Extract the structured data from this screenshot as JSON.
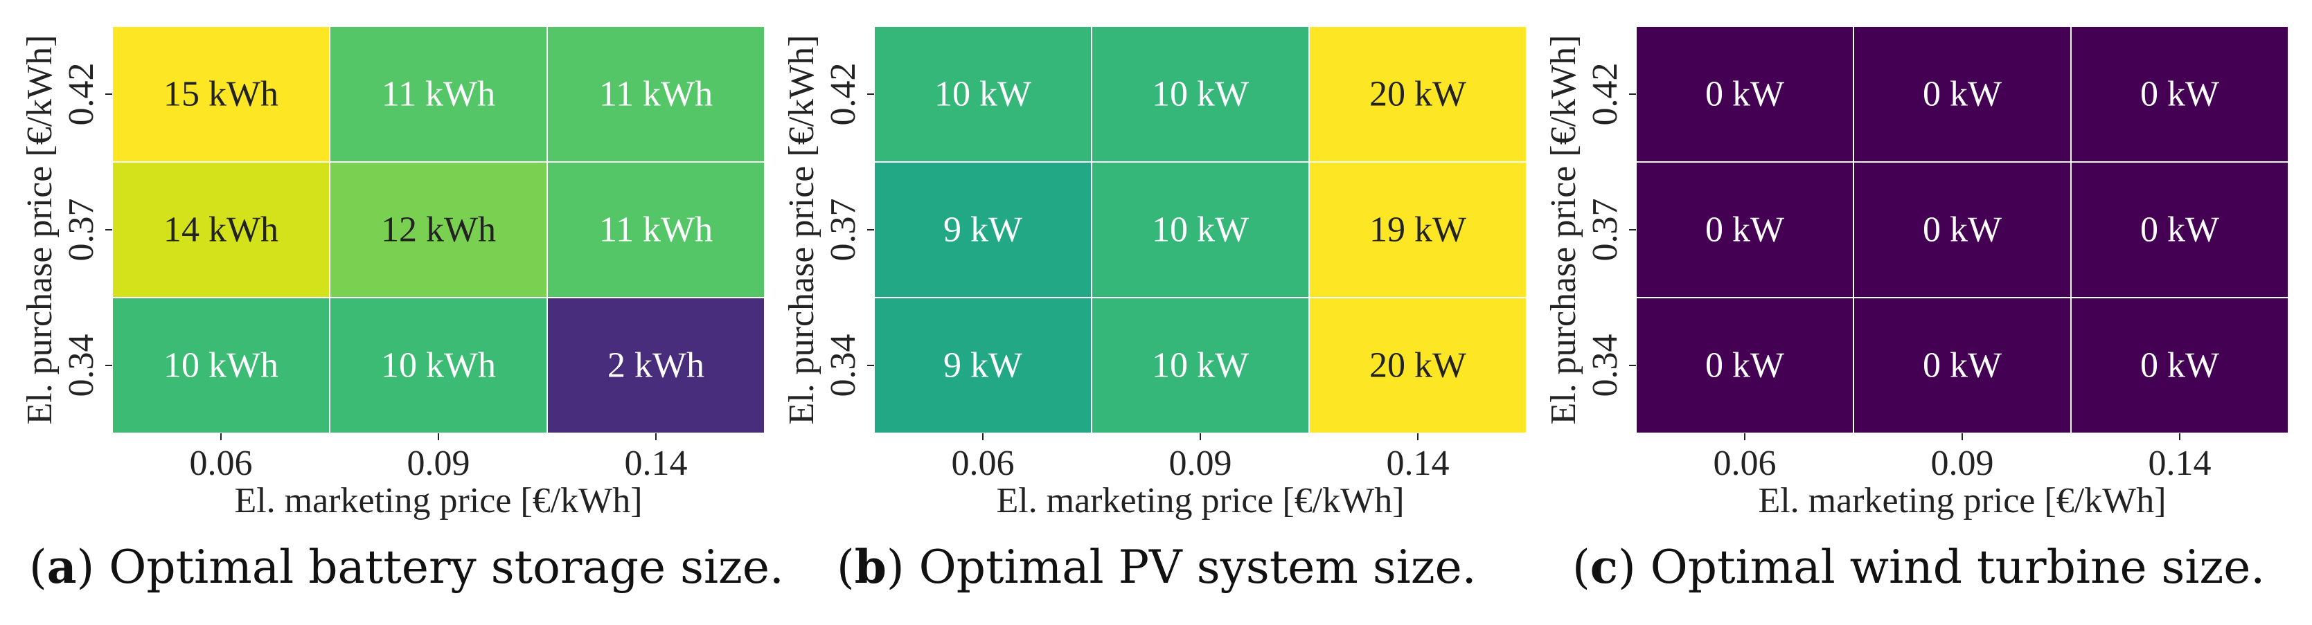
{
  "x_label": "El. marketing price [€/kWh]",
  "y_label": "El. purchase price [€/kWh]",
  "colors": {
    "grid_line": "#ffffff",
    "dark_text": "#222222",
    "light_text": "#ffffff"
  },
  "chart_data": [
    {
      "type": "heatmap",
      "caption_letter": "a",
      "caption_text": ") Optimal battery storage size.",
      "xlabel": "El. marketing price [€/kWh]",
      "ylabel": "El. purchase price [€/kWh]",
      "x_categories": [
        "0.06",
        "0.09",
        "0.14"
      ],
      "y_categories": [
        "0.42",
        "0.37",
        "0.34"
      ],
      "unit": "kWh",
      "values": [
        [
          15,
          11,
          11
        ],
        [
          14,
          12,
          11
        ],
        [
          10,
          10,
          2
        ]
      ],
      "labels": [
        [
          "15 kWh",
          "11 kWh",
          "11 kWh"
        ],
        [
          "14 kWh",
          "12 kWh",
          "11 kWh"
        ],
        [
          "10 kWh",
          "10 kWh",
          "2 kWh"
        ]
      ],
      "cell_colors": [
        [
          "#fde725",
          "#55c667",
          "#55c667"
        ],
        [
          "#d3e21b",
          "#7ad151",
          "#55c667"
        ],
        [
          "#3cbb75",
          "#3cbb75",
          "#472d7b"
        ]
      ]
    },
    {
      "type": "heatmap",
      "caption_letter": "b",
      "caption_text": ") Optimal PV system size.",
      "xlabel": "El. marketing price [€/kWh]",
      "ylabel": "El. purchase price [€/kWh]",
      "x_categories": [
        "0.06",
        "0.09",
        "0.14"
      ],
      "y_categories": [
        "0.42",
        "0.37",
        "0.34"
      ],
      "unit": "kW",
      "values": [
        [
          10,
          10,
          20
        ],
        [
          9,
          10,
          19
        ],
        [
          9,
          10,
          20
        ]
      ],
      "labels": [
        [
          "10 kW",
          "10 kW",
          "20 kW"
        ],
        [
          "9 kW",
          "10 kW",
          "19 kW"
        ],
        [
          "9 kW",
          "10 kW",
          "20 kW"
        ]
      ],
      "cell_colors": [
        [
          "#35b779",
          "#35b779",
          "#fde725"
        ],
        [
          "#22a884",
          "#35b779",
          "#fde725"
        ],
        [
          "#22a884",
          "#35b779",
          "#fde725"
        ]
      ]
    },
    {
      "type": "heatmap",
      "caption_letter": "c",
      "caption_text": ") Optimal wind turbine size.",
      "xlabel": "El. marketing price [€/kWh]",
      "ylabel": "El. purchase price [€/kWh]",
      "x_categories": [
        "0.06",
        "0.09",
        "0.14"
      ],
      "y_categories": [
        "0.42",
        "0.37",
        "0.34"
      ],
      "unit": "kW",
      "values": [
        [
          0,
          0,
          0
        ],
        [
          0,
          0,
          0
        ],
        [
          0,
          0,
          0
        ]
      ],
      "labels": [
        [
          "0 kW",
          "0 kW",
          "0 kW"
        ],
        [
          "0 kW",
          "0 kW",
          "0 kW"
        ],
        [
          "0 kW",
          "0 kW",
          "0 kW"
        ]
      ],
      "cell_colors": [
        [
          "#440154",
          "#440154",
          "#440154"
        ],
        [
          "#440154",
          "#440154",
          "#440154"
        ],
        [
          "#440154",
          "#440154",
          "#440154"
        ]
      ]
    }
  ]
}
